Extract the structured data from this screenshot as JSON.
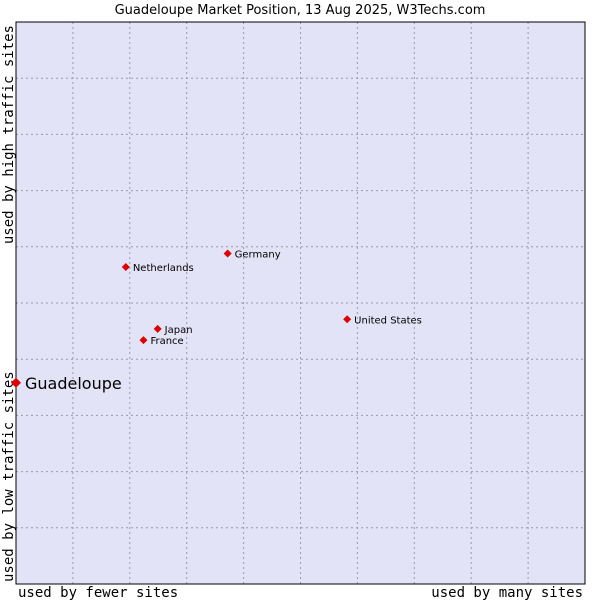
{
  "chart_data": {
    "type": "scatter",
    "title": "Guadeloupe Market Position, 13 Aug 2025, W3Techs.com",
    "xlabel_left": "used by fewer sites",
    "xlabel_right": "used by many sites",
    "ylabel_bottom": "used by low traffic sites",
    "ylabel_top": "used by high traffic sites",
    "xlim": [
      0,
      100
    ],
    "ylim": [
      0,
      100
    ],
    "grid": true,
    "colors": {
      "plot_bg": "#e3e3f7",
      "point": "#e00000",
      "border": "#000000"
    },
    "points": [
      {
        "label": "Guadeloupe",
        "x": 0.0,
        "y": 35.8,
        "highlight": true
      },
      {
        "label": "Germany",
        "x": 37.2,
        "y": 58.8,
        "highlight": false
      },
      {
        "label": "Netherlands",
        "x": 19.3,
        "y": 56.4,
        "highlight": false
      },
      {
        "label": "United States",
        "x": 58.2,
        "y": 47.1,
        "highlight": false
      },
      {
        "label": "Japan",
        "x": 24.9,
        "y": 45.4,
        "highlight": false
      },
      {
        "label": "France",
        "x": 22.4,
        "y": 43.4,
        "highlight": false
      }
    ]
  }
}
